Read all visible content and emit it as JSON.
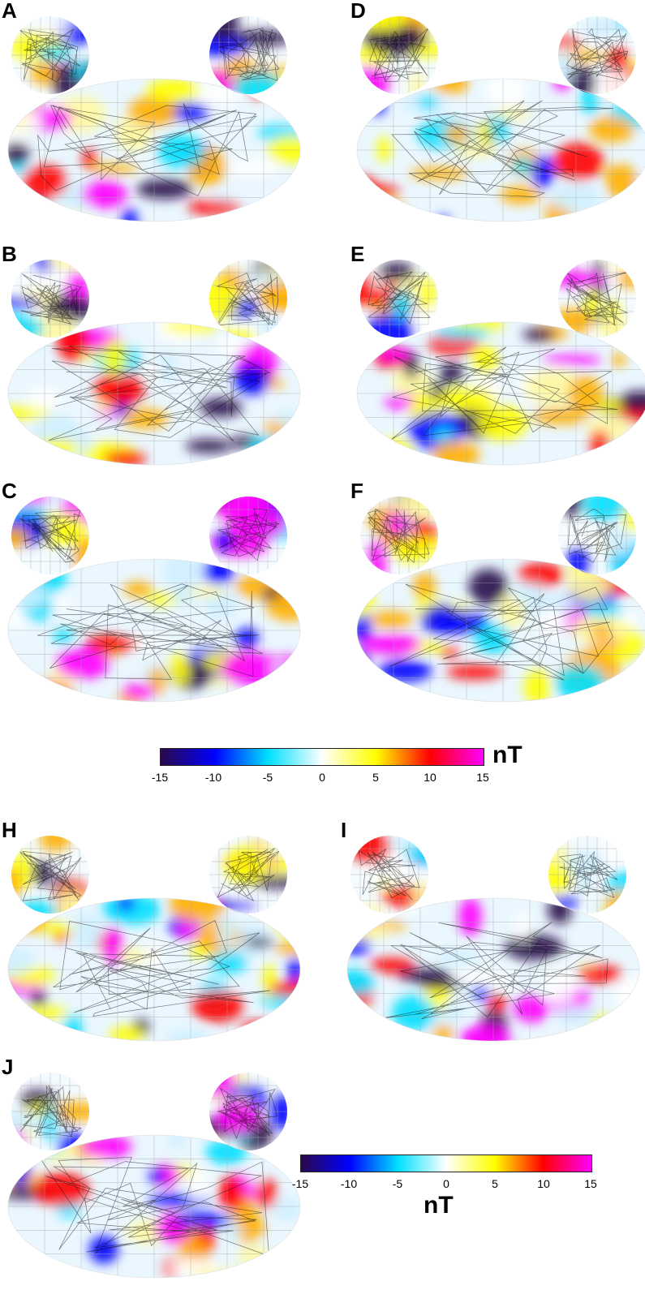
{
  "panels": [
    {
      "label": "A"
    },
    {
      "label": "B"
    },
    {
      "label": "C"
    },
    {
      "label": "D"
    },
    {
      "label": "E"
    },
    {
      "label": "F"
    },
    {
      "label": "H"
    },
    {
      "label": "I"
    },
    {
      "label": "J"
    }
  ],
  "colorbar": {
    "ticks": [
      "-15",
      "-10",
      "-5",
      "0",
      "5",
      "10",
      "15"
    ],
    "unit": "nT",
    "colors": [
      "#2a0a4a",
      "#0000ff",
      "#00e0ff",
      "#ffffff",
      "#ffff00",
      "#ff0000",
      "#ff00ff"
    ]
  }
}
